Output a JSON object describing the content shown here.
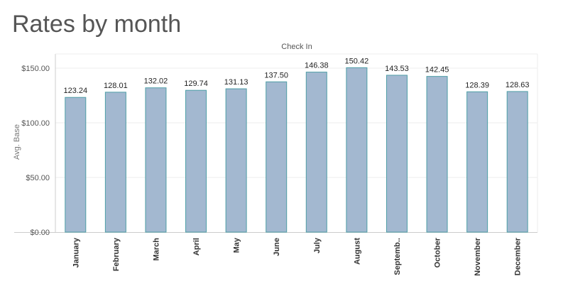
{
  "page": {
    "title": "Rates by month"
  },
  "chart_data": {
    "type": "bar",
    "title": "Rates by month",
    "xlabel": "Check In",
    "ylabel": "Avg. Base",
    "categories": [
      "January",
      "February",
      "March",
      "April",
      "May",
      "June",
      "July",
      "August",
      "Septemb..",
      "October",
      "November",
      "December"
    ],
    "values": [
      123.24,
      128.01,
      132.02,
      129.74,
      131.13,
      137.5,
      146.38,
      150.42,
      143.53,
      142.45,
      128.39,
      128.63
    ],
    "value_labels": [
      "123.24",
      "128.01",
      "132.02",
      "129.74",
      "131.13",
      "137.50",
      "146.38",
      "150.42",
      "143.53",
      "142.45",
      "128.39",
      "128.63"
    ],
    "yticks": [
      0,
      50,
      100,
      150
    ],
    "ytick_labels": [
      "$0.00",
      "$50.00",
      "$100.00",
      "$150.00"
    ],
    "ylim": [
      0,
      163
    ],
    "grid": true,
    "legend": "none",
    "colors": {
      "bar_fill": "#a3b8d0",
      "bar_stroke": "#4e9ea6",
      "grid": "#eeeeee",
      "axis": "#cccccc",
      "text": "#555555"
    }
  }
}
